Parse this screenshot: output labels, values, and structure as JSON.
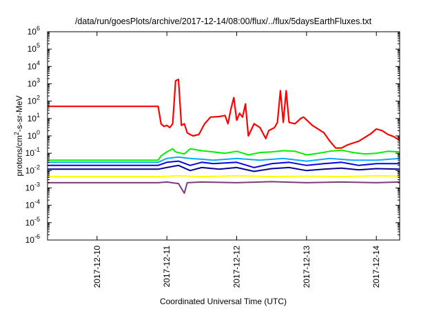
{
  "chart_data": {
    "type": "line",
    "title": "/data/run/goesPlots/archive/2017-12-14/08:00/flux/../flux/5daysEarthFluxes.txt",
    "xlabel": "Coordinated Universal Time (UTC)",
    "ylabel_main": "protons/cm",
    "ylabel_sup": "2",
    "ylabel_rest": "-s-sr-MeV",
    "yscale": "log",
    "ylim_exp": [
      -6,
      6
    ],
    "xlim": [
      "2017-12-09T07:00",
      "2017-12-14T08:00"
    ],
    "xticks": [
      "2017-12-10",
      "2017-12-11",
      "2017-12-12",
      "2017-12-13",
      "2017-12-14"
    ],
    "yticks": [
      {
        "base": "10",
        "exp": "-6"
      },
      {
        "base": "10",
        "exp": "-5"
      },
      {
        "base": "10",
        "exp": "-4"
      },
      {
        "base": "10",
        "exp": "-3"
      },
      {
        "base": "10",
        "exp": "-2"
      },
      {
        "base": "10",
        "exp": "-1"
      },
      {
        "base": "10",
        "exp": "0"
      },
      {
        "base": "10",
        "exp": "1"
      },
      {
        "base": "10",
        "exp": "2"
      },
      {
        "base": "10",
        "exp": "3"
      },
      {
        "base": "10",
        "exp": "4"
      },
      {
        "base": "10",
        "exp": "5"
      },
      {
        "base": "10",
        "exp": "6"
      }
    ],
    "grid": false,
    "series": [
      {
        "color": "#ff0000",
        "width": 2.2,
        "points": [
          [
            "2017-12-09T07:00",
            50
          ],
          [
            "2017-12-10T21:00",
            50
          ],
          [
            "2017-12-10T22:00",
            5
          ],
          [
            "2017-12-10T23:00",
            3.5
          ],
          [
            "2017-12-11T00:00",
            4
          ],
          [
            "2017-12-11T01:00",
            3
          ],
          [
            "2017-12-11T02:00",
            5
          ],
          [
            "2017-12-11T03:00",
            1500
          ],
          [
            "2017-12-11T04:00",
            1800
          ],
          [
            "2017-12-11T05:00",
            4
          ],
          [
            "2017-12-11T06:00",
            5
          ],
          [
            "2017-12-11T07:00",
            1.5
          ],
          [
            "2017-12-11T08:00",
            1.2
          ],
          [
            "2017-12-11T09:00",
            1.0
          ],
          [
            "2017-12-11T11:00",
            1.2
          ],
          [
            "2017-12-11T13:00",
            5
          ],
          [
            "2017-12-11T15:00",
            12
          ],
          [
            "2017-12-11T18:00",
            13
          ],
          [
            "2017-12-11T20:00",
            15
          ],
          [
            "2017-12-11T21:00",
            5
          ],
          [
            "2017-12-11T22:00",
            35
          ],
          [
            "2017-12-11T23:00",
            160
          ],
          [
            "2017-12-12T00:00",
            8
          ],
          [
            "2017-12-12T01:00",
            20
          ],
          [
            "2017-12-12T02:00",
            12
          ],
          [
            "2017-12-12T03:00",
            70
          ],
          [
            "2017-12-12T04:00",
            1
          ],
          [
            "2017-12-12T06:00",
            5
          ],
          [
            "2017-12-12T08:00",
            3
          ],
          [
            "2017-12-12T10:00",
            0.7
          ],
          [
            "2017-12-12T11:00",
            2
          ],
          [
            "2017-12-12T13:00",
            3
          ],
          [
            "2017-12-12T14:00",
            6
          ],
          [
            "2017-12-12T15:00",
            400
          ],
          [
            "2017-12-12T16:00",
            6
          ],
          [
            "2017-12-12T17:00",
            400
          ],
          [
            "2017-12-12T18:00",
            6
          ],
          [
            "2017-12-12T20:00",
            5
          ],
          [
            "2017-12-12T22:00",
            10
          ],
          [
            "2017-12-12T23:00",
            12
          ],
          [
            "2017-12-13T02:00",
            4
          ],
          [
            "2017-12-13T06:00",
            1.5
          ],
          [
            "2017-12-13T08:00",
            0.5
          ],
          [
            "2017-12-13T10:00",
            0.2
          ],
          [
            "2017-12-13T12:00",
            0.2
          ],
          [
            "2017-12-13T14:00",
            0.3
          ],
          [
            "2017-12-13T18:00",
            0.5
          ],
          [
            "2017-12-13T22:00",
            1.3
          ],
          [
            "2017-12-14T00:00",
            2.5
          ],
          [
            "2017-12-14T02:00",
            2.0
          ],
          [
            "2017-12-14T04:00",
            1.2
          ],
          [
            "2017-12-14T06:00",
            0.9
          ],
          [
            "2017-12-14T07:00",
            0.7
          ],
          [
            "2017-12-14T08:00",
            0.6
          ]
        ]
      },
      {
        "color": "#00ee00",
        "width": 2,
        "points": [
          [
            "2017-12-09T07:00",
            0.04
          ],
          [
            "2017-12-10T21:00",
            0.04
          ],
          [
            "2017-12-10T22:00",
            0.07
          ],
          [
            "2017-12-11T00:00",
            0.12
          ],
          [
            "2017-12-11T02:00",
            0.18
          ],
          [
            "2017-12-11T03:00",
            0.12
          ],
          [
            "2017-12-11T06:00",
            0.09
          ],
          [
            "2017-12-11T08:00",
            0.18
          ],
          [
            "2017-12-11T12:00",
            0.14
          ],
          [
            "2017-12-11T16:00",
            0.12
          ],
          [
            "2017-12-11T20:00",
            0.1
          ],
          [
            "2017-12-12T00:00",
            0.13
          ],
          [
            "2017-12-12T04:00",
            0.08
          ],
          [
            "2017-12-12T08:00",
            0.11
          ],
          [
            "2017-12-12T12:00",
            0.12
          ],
          [
            "2017-12-12T16:00",
            0.14
          ],
          [
            "2017-12-12T20:00",
            0.13
          ],
          [
            "2017-12-13T00:00",
            0.08
          ],
          [
            "2017-12-13T04:00",
            0.1
          ],
          [
            "2017-12-13T08:00",
            0.13
          ],
          [
            "2017-12-13T12:00",
            0.15
          ],
          [
            "2017-12-13T16:00",
            0.11
          ],
          [
            "2017-12-13T20:00",
            0.09
          ],
          [
            "2017-12-14T00:00",
            0.1
          ],
          [
            "2017-12-14T04:00",
            0.13
          ],
          [
            "2017-12-14T08:00",
            0.12
          ]
        ]
      },
      {
        "color": "#00aaff",
        "width": 2,
        "points": [
          [
            "2017-12-09T07:00",
            0.03
          ],
          [
            "2017-12-10T21:00",
            0.03
          ],
          [
            "2017-12-11T00:00",
            0.05
          ],
          [
            "2017-12-11T04:00",
            0.06
          ],
          [
            "2017-12-11T08:00",
            0.05
          ],
          [
            "2017-12-11T12:00",
            0.045
          ],
          [
            "2017-12-11T16:00",
            0.04
          ],
          [
            "2017-12-12T00:00",
            0.05
          ],
          [
            "2017-12-12T08:00",
            0.04
          ],
          [
            "2017-12-12T16:00",
            0.05
          ],
          [
            "2017-12-13T00:00",
            0.035
          ],
          [
            "2017-12-13T08:00",
            0.05
          ],
          [
            "2017-12-13T16:00",
            0.04
          ],
          [
            "2017-12-14T00:00",
            0.04
          ],
          [
            "2017-12-14T08:00",
            0.05
          ]
        ]
      },
      {
        "color": "#0000ee",
        "width": 2,
        "points": [
          [
            "2017-12-09T07:00",
            0.02
          ],
          [
            "2017-12-10T21:00",
            0.02
          ],
          [
            "2017-12-11T00:00",
            0.03
          ],
          [
            "2017-12-11T04:00",
            0.035
          ],
          [
            "2017-12-11T08:00",
            0.02
          ],
          [
            "2017-12-11T12:00",
            0.03
          ],
          [
            "2017-12-11T16:00",
            0.025
          ],
          [
            "2017-12-12T00:00",
            0.03
          ],
          [
            "2017-12-12T06:00",
            0.015
          ],
          [
            "2017-12-12T12:00",
            0.025
          ],
          [
            "2017-12-12T18:00",
            0.03
          ],
          [
            "2017-12-13T00:00",
            0.02
          ],
          [
            "2017-12-13T06:00",
            0.025
          ],
          [
            "2017-12-13T12:00",
            0.03
          ],
          [
            "2017-12-13T18:00",
            0.02
          ],
          [
            "2017-12-14T00:00",
            0.025
          ],
          [
            "2017-12-14T08:00",
            0.025
          ]
        ]
      },
      {
        "color": "#000099",
        "width": 2,
        "points": [
          [
            "2017-12-09T07:00",
            0.012
          ],
          [
            "2017-12-10T21:00",
            0.012
          ],
          [
            "2017-12-11T00:00",
            0.015
          ],
          [
            "2017-12-11T04:00",
            0.02
          ],
          [
            "2017-12-11T08:00",
            0.01
          ],
          [
            "2017-12-11T12:00",
            0.015
          ],
          [
            "2017-12-11T18:00",
            0.012
          ],
          [
            "2017-12-12T00:00",
            0.015
          ],
          [
            "2017-12-12T06:00",
            0.009
          ],
          [
            "2017-12-12T12:00",
            0.013
          ],
          [
            "2017-12-12T18:00",
            0.015
          ],
          [
            "2017-12-13T00:00",
            0.01
          ],
          [
            "2017-12-13T06:00",
            0.012
          ],
          [
            "2017-12-13T12:00",
            0.014
          ],
          [
            "2017-12-13T18:00",
            0.011
          ],
          [
            "2017-12-14T00:00",
            0.013
          ],
          [
            "2017-12-14T08:00",
            0.012
          ]
        ]
      },
      {
        "color": "#ffff00",
        "width": 2,
        "points": [
          [
            "2017-12-09T07:00",
            0.0045
          ],
          [
            "2017-12-10T21:00",
            0.0045
          ],
          [
            "2017-12-11T04:00",
            0.005
          ],
          [
            "2017-12-11T12:00",
            0.0045
          ],
          [
            "2017-12-12T00:00",
            0.005
          ],
          [
            "2017-12-12T12:00",
            0.0045
          ],
          [
            "2017-12-13T00:00",
            0.0048
          ],
          [
            "2017-12-13T12:00",
            0.0045
          ],
          [
            "2017-12-14T00:00",
            0.005
          ],
          [
            "2017-12-14T08:00",
            0.0048
          ]
        ]
      },
      {
        "color": "#7a3b7a",
        "width": 2,
        "points": [
          [
            "2017-12-09T07:00",
            0.002
          ],
          [
            "2017-12-10T21:00",
            0.002
          ],
          [
            "2017-12-11T00:00",
            0.0022
          ],
          [
            "2017-12-11T04:00",
            0.0018
          ],
          [
            "2017-12-11T06:00",
            0.0005
          ],
          [
            "2017-12-11T07:00",
            0.002
          ],
          [
            "2017-12-11T12:00",
            0.0022
          ],
          [
            "2017-12-12T00:00",
            0.002
          ],
          [
            "2017-12-12T12:00",
            0.0023
          ],
          [
            "2017-12-13T00:00",
            0.002
          ],
          [
            "2017-12-13T12:00",
            0.0022
          ],
          [
            "2017-12-14T00:00",
            0.002
          ],
          [
            "2017-12-14T08:00",
            0.0022
          ]
        ]
      }
    ]
  }
}
